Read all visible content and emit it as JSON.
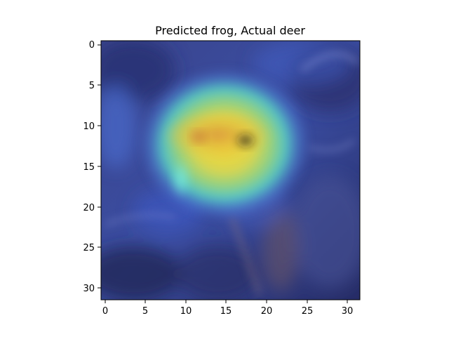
{
  "figure": {
    "title": "Predicted frog, Actual deer"
  },
  "image": {
    "grid_size": [
      32,
      32
    ],
    "overlay": "heatmap on photo",
    "colormap": "jet",
    "hotspot_center": [
      12,
      15
    ],
    "colors": {
      "background_low": "#303a7a",
      "hot_yellow": "#e8d23a",
      "hot_orange": "#d68a3c",
      "mid_cyan": "#5fe0c8",
      "mid_green": "#9ee07a",
      "dark_spot": "#1a1a1a"
    }
  },
  "axes": {
    "x_ticks": [
      "0",
      "5",
      "10",
      "15",
      "20",
      "25",
      "30"
    ],
    "y_ticks": [
      "0",
      "5",
      "10",
      "15",
      "20",
      "25",
      "30"
    ],
    "x_range": [
      -0.5,
      31.5
    ],
    "y_range": [
      -0.5,
      31.5
    ],
    "y_inverted": true
  }
}
